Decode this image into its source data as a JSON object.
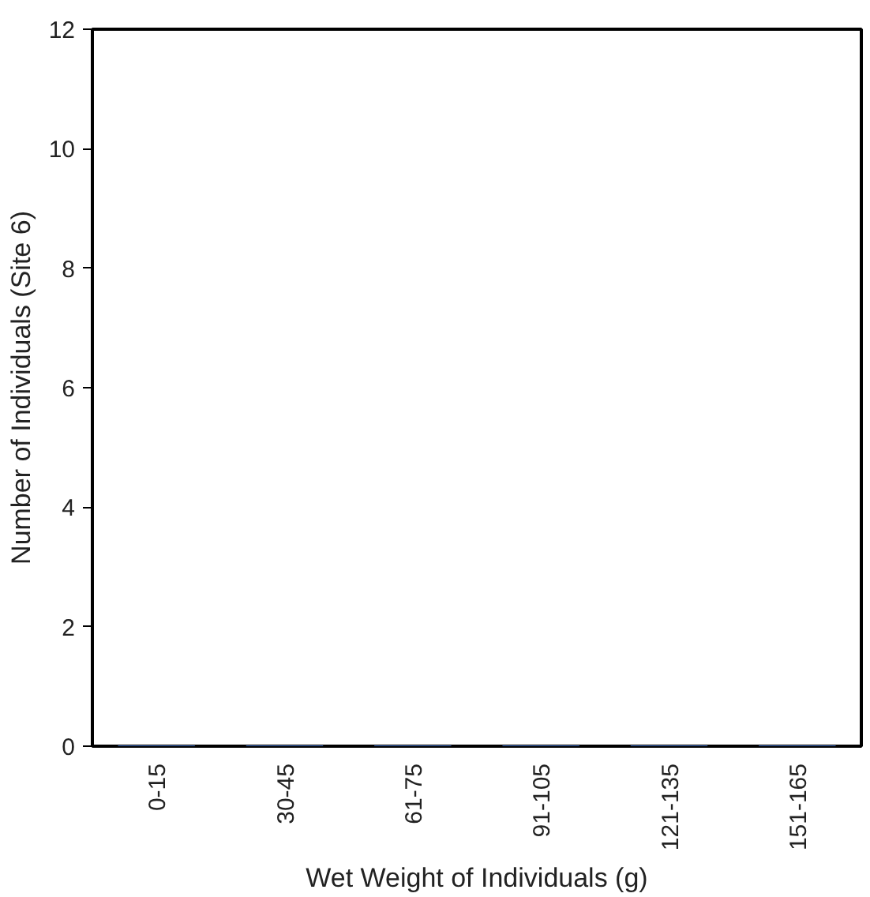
{
  "chart_data": {
    "type": "bar",
    "xlabel": "Wet Weight of Individuals (g)",
    "ylabel": "Number of Individuals (Site 6)",
    "categories": [
      "0-15",
      "30-45",
      "61-75",
      "91-105",
      "121-135",
      "151-165"
    ],
    "values": [
      0,
      0,
      0,
      0,
      0,
      0
    ],
    "color": "#4472c4",
    "ylim": [
      0,
      12
    ],
    "yticks": [
      0,
      2,
      4,
      6,
      8,
      10,
      12
    ],
    "grid": false
  }
}
